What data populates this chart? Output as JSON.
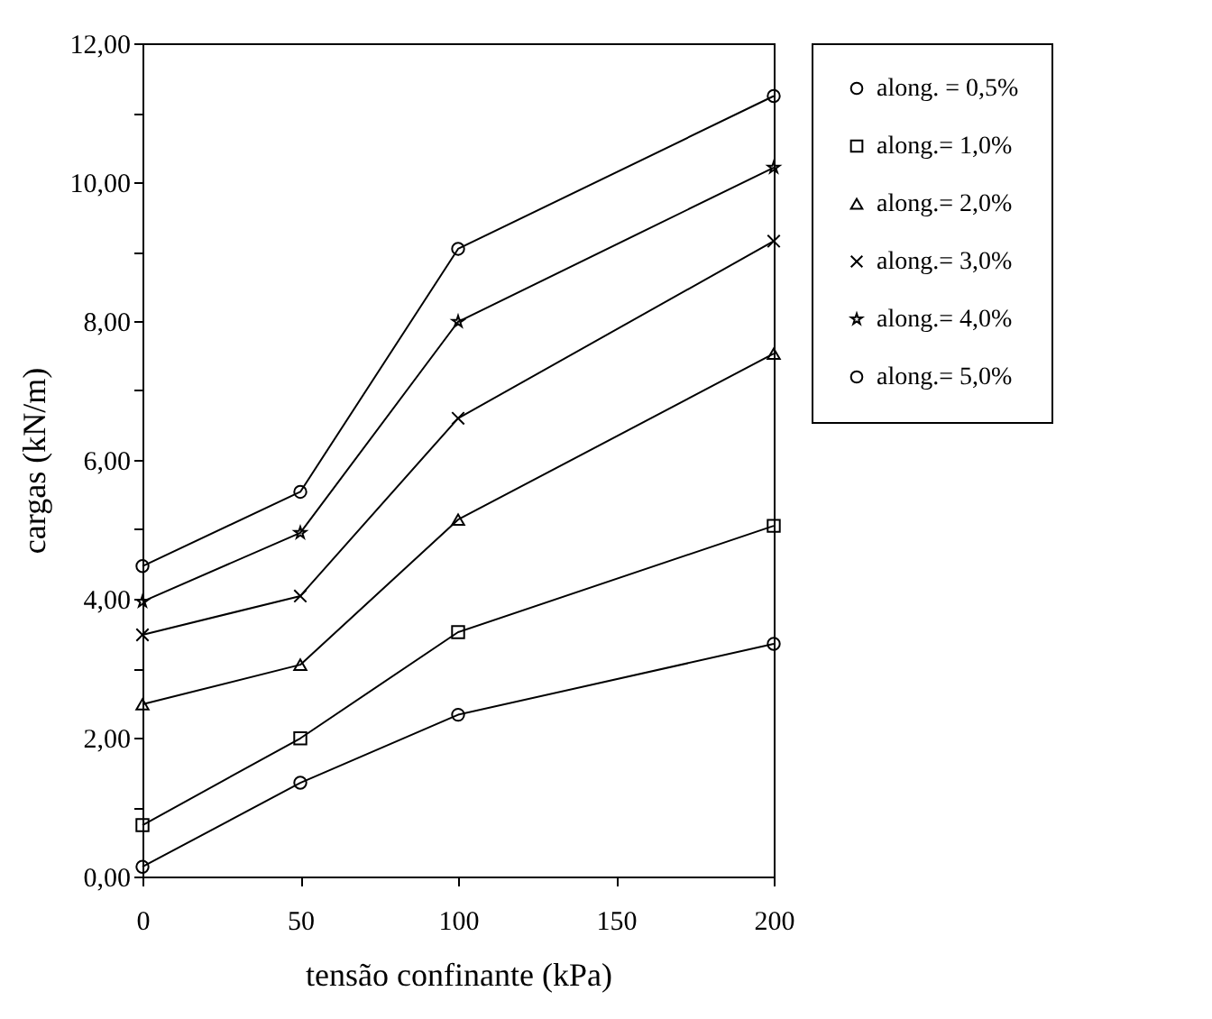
{
  "chart_data": {
    "type": "line",
    "xlabel": "tensão confinante (kPa)",
    "ylabel": "cargas (kN/m)",
    "x": [
      0,
      50,
      100,
      200
    ],
    "xlim": [
      0,
      200
    ],
    "xticks": [
      0,
      50,
      100,
      150,
      200
    ],
    "ylim": [
      0,
      12
    ],
    "yticks": [
      {
        "value": 0,
        "label": "0,00"
      },
      {
        "value": 1,
        "label": null
      },
      {
        "value": 2,
        "label": "2,00"
      },
      {
        "value": 3,
        "label": null
      },
      {
        "value": 4,
        "label": "4,00"
      },
      {
        "value": 5,
        "label": null
      },
      {
        "value": 6,
        "label": "6,00"
      },
      {
        "value": 7,
        "label": null
      },
      {
        "value": 8,
        "label": "8,00"
      },
      {
        "value": 9,
        "label": null
      },
      {
        "value": 10,
        "label": "10,00"
      },
      {
        "value": 11,
        "label": null
      },
      {
        "value": 12,
        "label": "12,00"
      }
    ],
    "grid": false,
    "legend": "top right",
    "line_style": "solid",
    "series": [
      {
        "name": "along. = 0,5%",
        "color": "#000000",
        "marker": "circle",
        "values": [
          0.14,
          1.35,
          2.33,
          3.35
        ]
      },
      {
        "name": "along.= 1,0%",
        "color": "#000000",
        "marker": "square",
        "values": [
          0.74,
          1.99,
          3.52,
          5.05
        ]
      },
      {
        "name": "along.= 2,0%",
        "color": "#000000",
        "marker": "triangle",
        "values": [
          2.48,
          3.05,
          5.14,
          7.53
        ]
      },
      {
        "name": "along.= 3,0%",
        "color": "#000000",
        "marker": "cross",
        "values": [
          3.48,
          4.04,
          6.6,
          9.15
        ]
      },
      {
        "name": "along.= 4,0%",
        "color": "#000000",
        "marker": "star",
        "values": [
          3.96,
          4.95,
          7.99,
          10.21
        ]
      },
      {
        "name": "along.= 5,0%",
        "color": "#000000",
        "marker": "circle",
        "values": [
          4.47,
          5.54,
          9.04,
          11.24
        ]
      }
    ]
  }
}
